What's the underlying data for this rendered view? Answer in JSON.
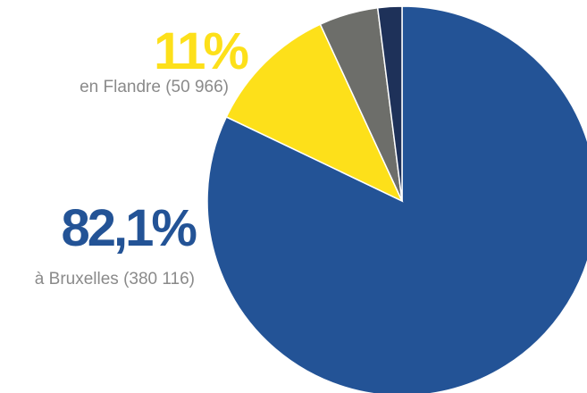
{
  "chart_data": {
    "type": "pie",
    "categories": [
      "à Bruxelles (380 116)",
      "en Flandre (50 966)",
      null,
      null
    ],
    "values": [
      82.1,
      11,
      4.9,
      2.0
    ],
    "value_labels": [
      "82,1%",
      "11%",
      null,
      null
    ],
    "colors": [
      "#235396",
      "#fde01a",
      "#6d6e6a",
      "#1e3159"
    ]
  }
}
